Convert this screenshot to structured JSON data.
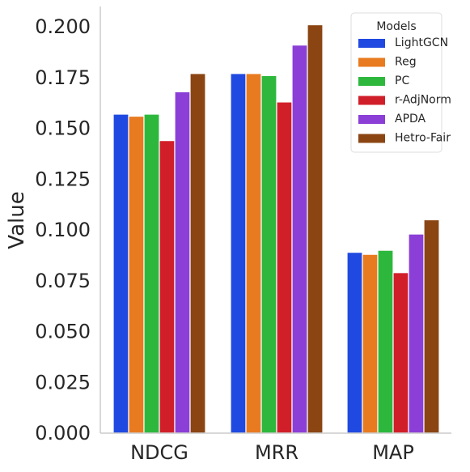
{
  "chart_data": {
    "type": "bar",
    "title": "",
    "xlabel": "",
    "ylabel": "Value",
    "ylim": [
      0,
      0.21
    ],
    "yticks": [
      "0.000",
      "0.025",
      "0.050",
      "0.075",
      "0.100",
      "0.125",
      "0.150",
      "0.175",
      "0.200"
    ],
    "categories": [
      "NDCG",
      "MRR",
      "MAP"
    ],
    "grid": false,
    "legend": {
      "title": "Models",
      "position": "top-right"
    },
    "series": [
      {
        "name": "LightGCN",
        "color": "#1f49e0",
        "values": [
          0.157,
          0.177,
          0.089
        ]
      },
      {
        "name": "Reg",
        "color": "#e87b1f",
        "values": [
          0.156,
          0.177,
          0.088
        ]
      },
      {
        "name": "PC",
        "color": "#2db83d",
        "values": [
          0.157,
          0.176,
          0.09
        ]
      },
      {
        "name": "r-AdjNorm",
        "color": "#d11f2a",
        "values": [
          0.144,
          0.163,
          0.079
        ]
      },
      {
        "name": "APDA",
        "color": "#8b3fd6",
        "values": [
          0.168,
          0.191,
          0.098
        ]
      },
      {
        "name": "Hetro-Fair",
        "color": "#8b4513",
        "values": [
          0.177,
          0.201,
          0.105
        ]
      }
    ]
  }
}
